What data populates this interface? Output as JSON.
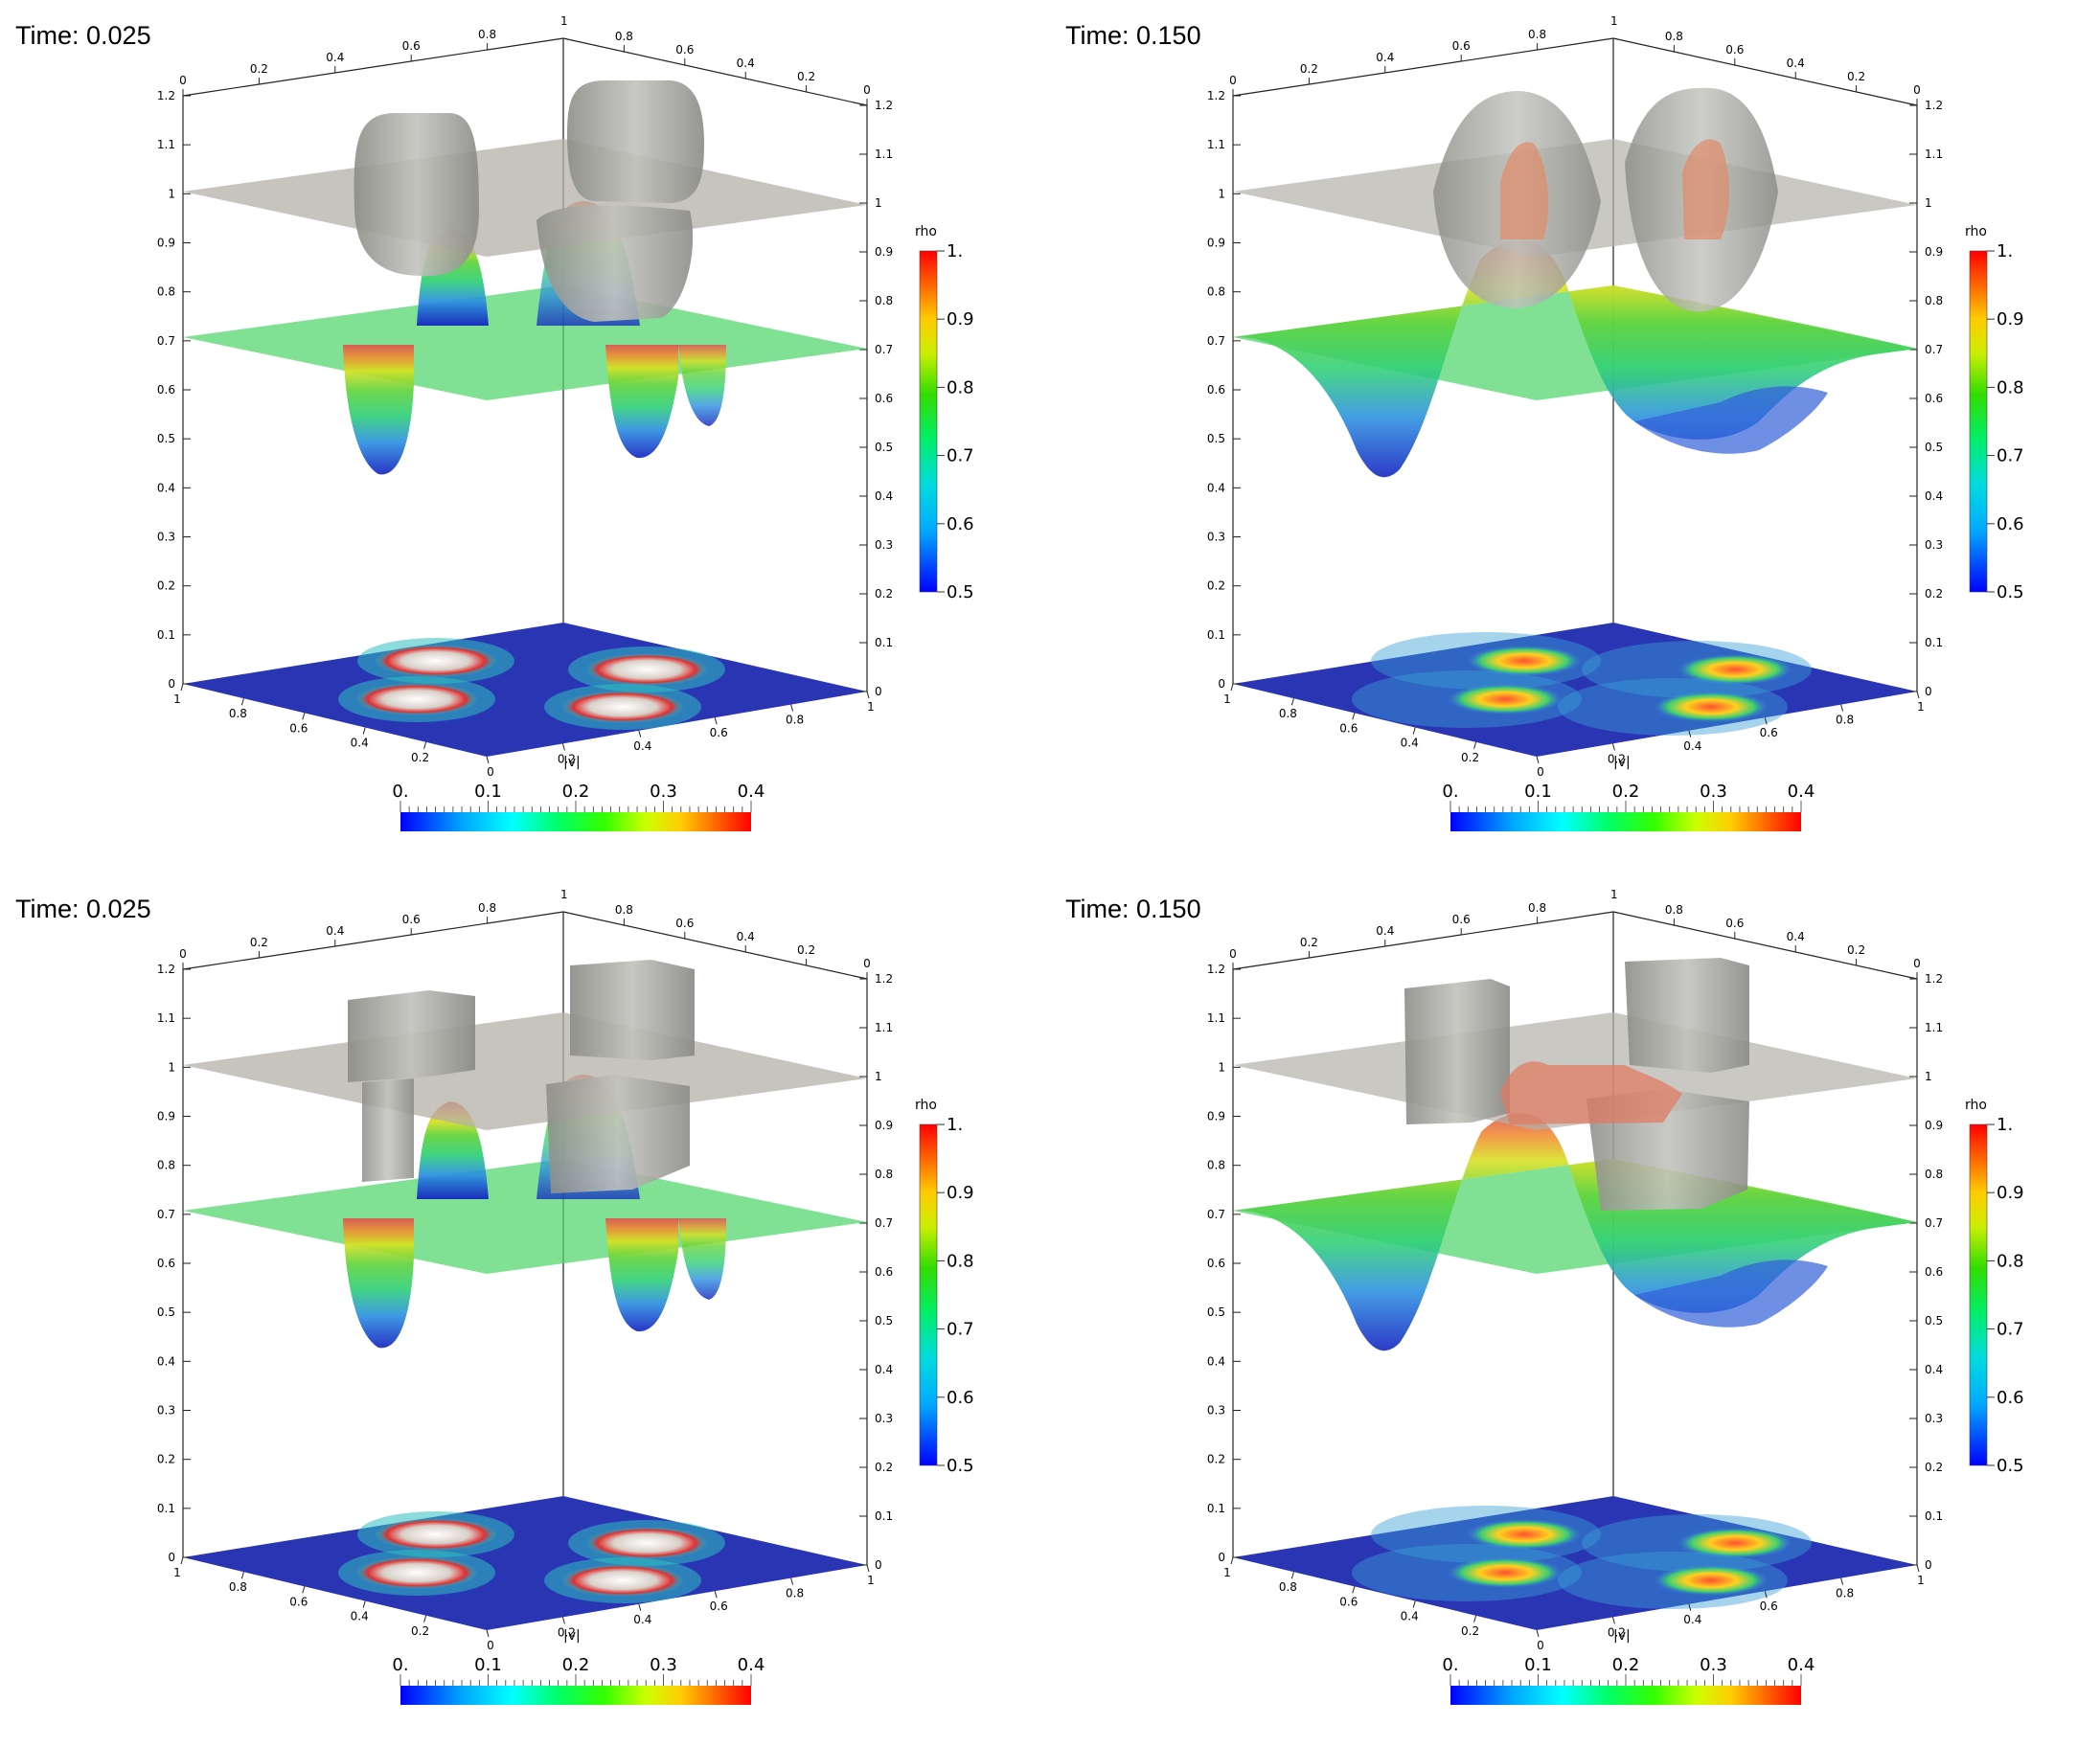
{
  "figure": {
    "panels": [
      {
        "id": "top-left",
        "time_label": "Time:",
        "time_value": "0.025"
      },
      {
        "id": "top-right",
        "time_label": "Time:",
        "time_value": "0.150"
      },
      {
        "id": "bottom-left",
        "time_label": "Time:",
        "time_value": "0.025"
      },
      {
        "id": "bottom-right",
        "time_label": "Time:",
        "time_value": "0.150"
      }
    ],
    "vertical_axis_ticks": [
      "0",
      "0.1",
      "0.2",
      "0.3",
      "0.4",
      "0.5",
      "0.6",
      "0.7",
      "0.8",
      "0.9",
      "1",
      "1.1",
      "1.2"
    ],
    "right_axis_ticks": [
      "0",
      "0.1",
      "0.2",
      "0.3",
      "0.4",
      "0.5",
      "0.6",
      "0.7",
      "0.8",
      "0.9",
      "1",
      "1.1",
      "1.2"
    ],
    "top_left_axis_ticks": [
      "0",
      "0.2",
      "0.4",
      "0.6",
      "0.8"
    ],
    "top_right_axis_ticks": [
      "0.8",
      "0.6",
      "0.4",
      "0.2",
      "0"
    ],
    "top_corner_tick": "1",
    "base_left_ticks": [
      "1",
      "0.8",
      "0.6",
      "0.4",
      "0.2"
    ],
    "base_right_ticks": [
      "0",
      "0.2",
      "0.4",
      "0.6",
      "0.8",
      "1"
    ],
    "base_axis_label": "|v|",
    "rho_colorbar": {
      "title": "rho",
      "tick_labels": [
        "1.",
        "0.9",
        "0.8",
        "0.7",
        "0.6",
        "0.5"
      ],
      "range": [
        0.5,
        1.0
      ],
      "colormap": [
        "#0000ff",
        "#00aaff",
        "#00dddd",
        "#00ee66",
        "#33dd00",
        "#ccee00",
        "#ffcc00",
        "#ff6600",
        "#ff0000"
      ]
    },
    "v_colorbar": {
      "tick_labels": [
        "0.",
        "0.1",
        "0.2",
        "0.3",
        "0.4"
      ],
      "range": [
        0,
        0.4
      ],
      "colormap": [
        "#0000ff",
        "#00aaff",
        "#00ffff",
        "#00ff66",
        "#33ff00",
        "#ccff00",
        "#ffcc00",
        "#ff6600",
        "#ff0000"
      ]
    },
    "colors": {
      "gray_surface": "#a7a7a2",
      "gray_plane": "#b4b0a8",
      "green_plane": "#4fd66c",
      "base_blue": "#2a35b4"
    }
  }
}
